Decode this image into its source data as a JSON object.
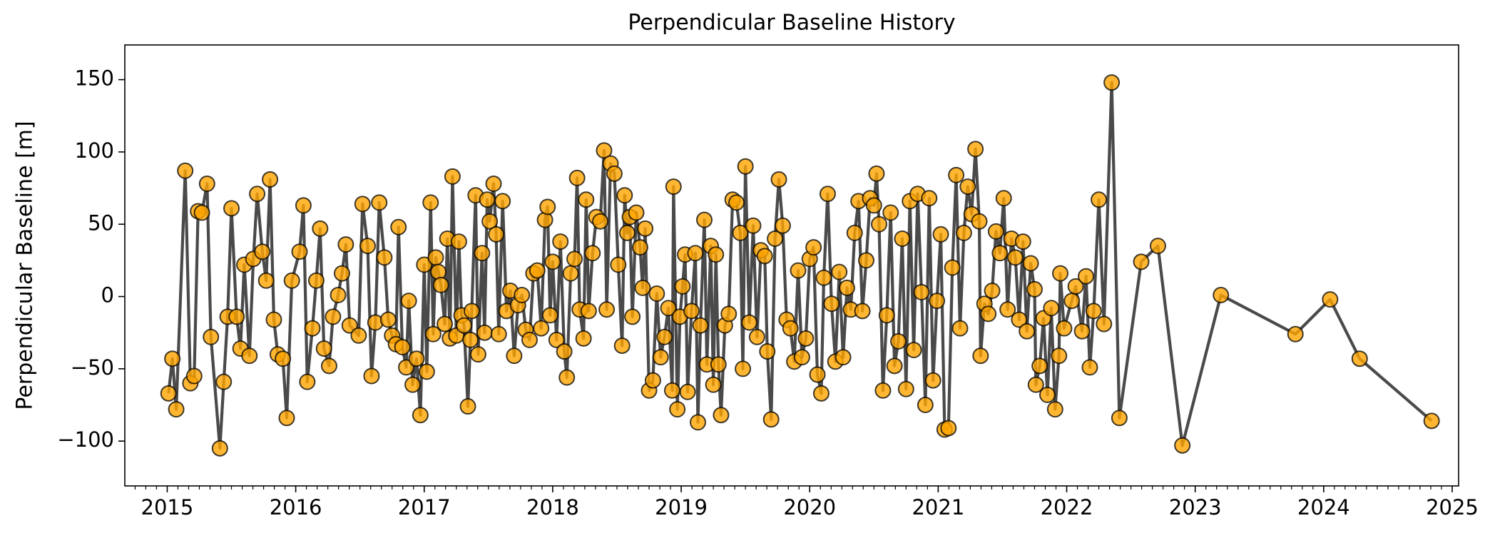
{
  "chart_data": {
    "type": "line",
    "title": "Perpendicular Baseline History",
    "ylabel": "Perpendicular Baseline [m]",
    "line_color": "#404040",
    "marker_color": "#ffa500",
    "marker_edge_color": "#000000",
    "xlim": [
      2014.67,
      2025.05
    ],
    "ylim": [
      -131,
      174
    ],
    "xticks": [
      2015,
      2016,
      2017,
      2018,
      2019,
      2020,
      2021,
      2022,
      2023,
      2024,
      2025
    ],
    "yticks": [
      {
        "value": -100,
        "label": "−100"
      },
      {
        "value": -50,
        "label": "−50"
      },
      0,
      50,
      100,
      150
    ],
    "x": [
      2015.01,
      2015.04,
      2015.07,
      2015.14,
      2015.18,
      2015.21,
      2015.24,
      2015.27,
      2015.31,
      2015.34,
      2015.41,
      2015.44,
      2015.47,
      2015.5,
      2015.54,
      2015.57,
      2015.6,
      2015.64,
      2015.67,
      2015.7,
      2015.74,
      2015.77,
      2015.8,
      2015.83,
      2015.86,
      2015.9,
      2015.93,
      2015.97,
      2016.03,
      2016.06,
      2016.09,
      2016.13,
      2016.16,
      2016.19,
      2016.22,
      2016.26,
      2016.29,
      2016.33,
      2016.36,
      2016.39,
      2016.42,
      2016.49,
      2016.52,
      2016.56,
      2016.59,
      2016.62,
      2016.65,
      2016.69,
      2016.72,
      2016.75,
      2016.78,
      2016.8,
      2016.83,
      2016.86,
      2016.88,
      2016.91,
      2016.94,
      2016.97,
      2017.0,
      2017.02,
      2017.05,
      2017.07,
      2017.09,
      2017.11,
      2017.13,
      2017.16,
      2017.18,
      2017.2,
      2017.22,
      2017.25,
      2017.27,
      2017.29,
      2017.31,
      2017.34,
      2017.36,
      2017.37,
      2017.4,
      2017.42,
      2017.45,
      2017.47,
      2017.49,
      2017.51,
      2017.54,
      2017.56,
      2017.58,
      2017.61,
      2017.64,
      2017.67,
      2017.7,
      2017.73,
      2017.76,
      2017.79,
      2017.82,
      2017.85,
      2017.88,
      2017.91,
      2017.94,
      2017.96,
      2017.98,
      2018.0,
      2018.03,
      2018.06,
      2018.09,
      2018.11,
      2018.14,
      2018.17,
      2018.19,
      2018.21,
      2018.24,
      2018.26,
      2018.28,
      2018.31,
      2018.34,
      2018.37,
      2018.4,
      2018.42,
      2018.45,
      2018.48,
      2018.51,
      2018.54,
      2018.56,
      2018.58,
      2018.6,
      2018.62,
      2018.65,
      2018.68,
      2018.7,
      2018.72,
      2018.75,
      2018.78,
      2018.81,
      2018.84,
      2018.87,
      2018.9,
      2018.93,
      2018.94,
      2018.97,
      2018.99,
      2019.01,
      2019.03,
      2019.05,
      2019.08,
      2019.11,
      2019.13,
      2019.15,
      2019.18,
      2019.2,
      2019.23,
      2019.25,
      2019.27,
      2019.29,
      2019.31,
      2019.34,
      2019.37,
      2019.4,
      2019.43,
      2019.46,
      2019.48,
      2019.5,
      2019.53,
      2019.56,
      2019.59,
      2019.62,
      2019.65,
      2019.67,
      2019.7,
      2019.73,
      2019.76,
      2019.79,
      2019.82,
      2019.85,
      2019.88,
      2019.91,
      2019.94,
      2019.97,
      2020.0,
      2020.03,
      2020.06,
      2020.09,
      2020.11,
      2020.14,
      2020.17,
      2020.2,
      2020.23,
      2020.26,
      2020.29,
      2020.32,
      2020.35,
      2020.38,
      2020.41,
      2020.44,
      2020.47,
      2020.5,
      2020.52,
      2020.54,
      2020.57,
      2020.6,
      2020.63,
      2020.66,
      2020.69,
      2020.72,
      2020.75,
      2020.78,
      2020.81,
      2020.84,
      2020.87,
      2020.9,
      2020.93,
      2020.96,
      2020.99,
      2021.02,
      2021.05,
      2021.08,
      2021.11,
      2021.14,
      2021.17,
      2021.2,
      2021.23,
      2021.26,
      2021.29,
      2021.32,
      2021.33,
      2021.36,
      2021.39,
      2021.42,
      2021.45,
      2021.48,
      2021.51,
      2021.54,
      2021.57,
      2021.6,
      2021.63,
      2021.66,
      2021.69,
      2021.72,
      2021.75,
      2021.76,
      2021.79,
      2021.82,
      2021.85,
      2021.88,
      2021.91,
      2021.94,
      2021.95,
      2021.98,
      2022.04,
      2022.07,
      2022.12,
      2022.15,
      2022.18,
      2022.21,
      2022.25,
      2022.29,
      2022.35,
      2022.41,
      2022.58,
      2022.71,
      2022.9,
      2023.2,
      2023.78,
      2024.05,
      2024.28,
      2024.84
    ],
    "values": [
      -67,
      -43,
      -78,
      87,
      -60,
      -55,
      59,
      58,
      78,
      -28,
      -105,
      -59,
      -14,
      61,
      -14,
      -36,
      22,
      -41,
      26,
      71,
      31,
      11,
      81,
      -16,
      -40,
      -43,
      -84,
      11,
      31,
      63,
      -59,
      -22,
      11,
      47,
      -36,
      -48,
      -14,
      1,
      16,
      36,
      -20,
      -27,
      64,
      35,
      -55,
      -18,
      65,
      27,
      -16,
      -27,
      -33,
      48,
      -35,
      -49,
      -3,
      -61,
      -43,
      -82,
      22,
      -52,
      65,
      -26,
      27,
      17,
      8,
      -19,
      40,
      -29,
      83,
      -27,
      38,
      -13,
      -20,
      -76,
      -30,
      -10,
      70,
      -40,
      30,
      -25,
      67,
      52,
      78,
      43,
      -26,
      66,
      -10,
      4,
      -41,
      -6,
      1,
      -23,
      -30,
      16,
      18,
      -22,
      53,
      62,
      -13,
      24,
      -30,
      38,
      -38,
      -56,
      16,
      26,
      82,
      -9,
      -29,
      67,
      -10,
      30,
      55,
      52,
      101,
      -9,
      92,
      85,
      22,
      -34,
      70,
      44,
      55,
      -14,
      58,
      34,
      6,
      47,
      -65,
      -58,
      2,
      -42,
      -28,
      -8,
      -65,
      76,
      -78,
      -14,
      7,
      29,
      -66,
      -10,
      30,
      -87,
      -20,
      53,
      -47,
      35,
      -61,
      29,
      -47,
      -82,
      -20,
      -12,
      67,
      65,
      44,
      -50,
      90,
      -18,
      49,
      -28,
      32,
      28,
      -38,
      -85,
      40,
      81,
      49,
      -16,
      -22,
      -45,
      18,
      -42,
      -29,
      26,
      34,
      -54,
      -67,
      13,
      71,
      -5,
      -45,
      17,
      -42,
      6,
      -9,
      44,
      66,
      -10,
      25,
      68,
      63,
      85,
      50,
      -65,
      -13,
      58,
      -48,
      -31,
      40,
      -64,
      66,
      -37,
      71,
      3,
      -75,
      68,
      -58,
      -3,
      43,
      -92,
      -91,
      20,
      84,
      -22,
      44,
      76,
      57,
      102,
      52,
      -41,
      -5,
      -12,
      4,
      45,
      30,
      68,
      -9,
      40,
      27,
      -16,
      38,
      -24,
      23,
      5,
      -61,
      -48,
      -15,
      -68,
      -8,
      -78,
      -41,
      16,
      -22,
      -3,
      7,
      -24,
      14,
      -49,
      -10,
      67,
      -19,
      148,
      -84,
      24,
      35,
      -103,
      1,
      -26,
      -2,
      -43,
      -86
    ]
  }
}
